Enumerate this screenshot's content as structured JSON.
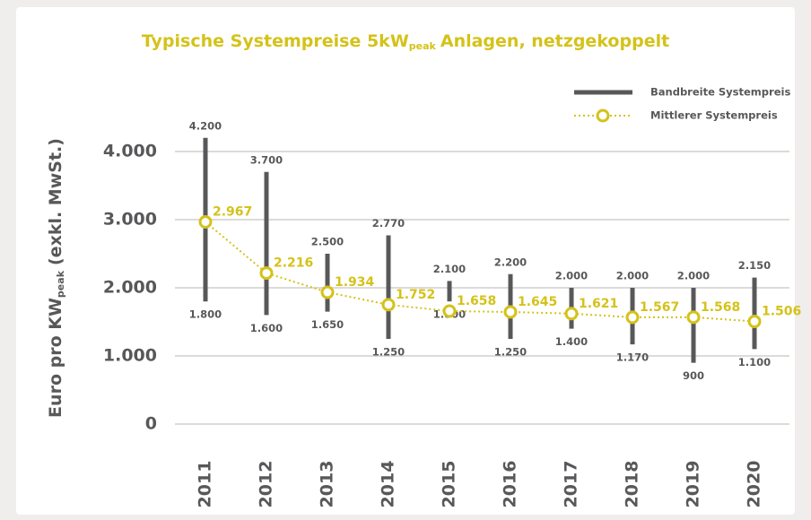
{
  "chart_data": {
    "type": "range_line",
    "title": {
      "main": "Typische Systempreise 5kW",
      "sub": "peak",
      "rest": "Anlagen, netzgekoppelt"
    },
    "y_label": {
      "main": "Euro pro KW",
      "sub": "peak",
      "rest": "(exkl. MwSt.)"
    },
    "categories": [
      "2011",
      "2012",
      "2013",
      "2014",
      "2015",
      "2016",
      "2017",
      "2018",
      "2019",
      "2020"
    ],
    "series": [
      {
        "name": "Bandbreite Systempreis",
        "color": "#58585a",
        "high": [
          4200,
          3700,
          2500,
          2770,
          2100,
          2200,
          2000,
          2000,
          2000,
          2150
        ],
        "high_labels": [
          "4.200",
          "3.700",
          "2.500",
          "2.770",
          "2.100",
          "2.200",
          "2.000",
          "2.000",
          "2.000",
          "2.150"
        ],
        "low": [
          1800,
          1600,
          1650,
          1250,
          1800,
          1250,
          1400,
          1170,
          900,
          1100
        ],
        "low_labels": [
          "1.800",
          "1.600",
          "1.650",
          "1.250",
          "1.800",
          "1.250",
          "1.400",
          "1.170",
          "900",
          "1.100"
        ]
      },
      {
        "name": "Mittlerer Systempreis",
        "color": "#d4c21a",
        "values": [
          2967,
          2216,
          1934,
          1752,
          1658,
          1645,
          1621,
          1567,
          1568,
          1506
        ],
        "value_labels": [
          "2.967",
          "2.216",
          "1.934",
          "1.752",
          "1.658",
          "1.645",
          "1.621",
          "1.567",
          "1.568",
          "1.506"
        ]
      }
    ],
    "ylim": [
      0,
      4500
    ],
    "yticks": [
      0,
      {
        "value": 1000,
        "label": "1.000"
      },
      {
        "value": 2000,
        "label": "2.000"
      },
      {
        "value": 3000,
        "label": "3.000"
      },
      {
        "value": 4000,
        "label": "4.000"
      }
    ],
    "grid": true,
    "legend": "upper right"
  }
}
